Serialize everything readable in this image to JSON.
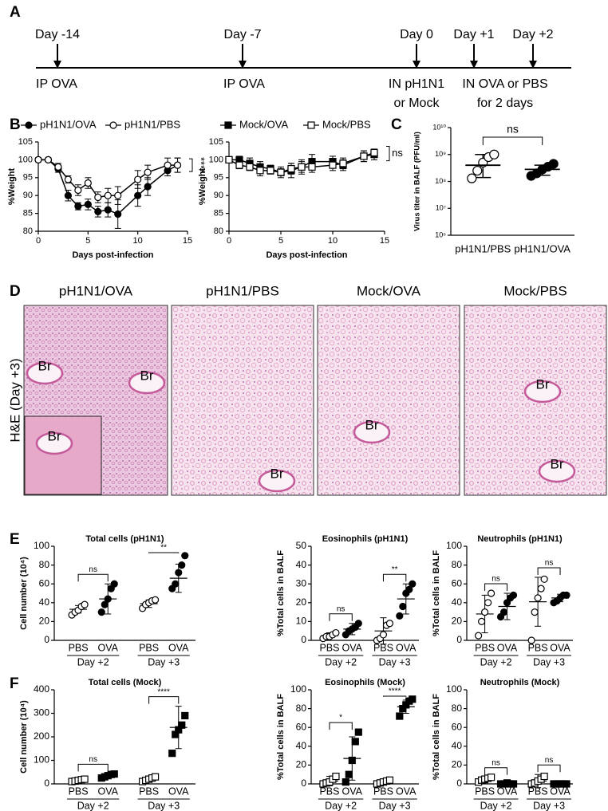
{
  "panel_labels": [
    "A",
    "B",
    "C",
    "D",
    "E",
    "F"
  ],
  "timeline": {
    "days": [
      "Day -14",
      "Day -7",
      "Day 0",
      "Day +1",
      "Day +2"
    ],
    "notes": [
      [
        "IP OVA"
      ],
      [
        "IP OVA"
      ],
      [
        "IN pH1N1",
        "or Mock"
      ],
      [
        "IN OVA or PBS",
        "for 2 days"
      ]
    ]
  },
  "histology": {
    "ylabel": "H&E (Day +3)",
    "panels": [
      {
        "title": "pH1N1/OVA",
        "labels": [
          "Br",
          "Br",
          "Br"
        ]
      },
      {
        "title": "pH1N1/PBS",
        "labels": [
          "Br"
        ]
      },
      {
        "title": "Mock/OVA",
        "labels": [
          "Br"
        ]
      },
      {
        "title": "Mock/PBS",
        "labels": [
          "Br",
          "Br"
        ]
      }
    ]
  },
  "chart_data": [
    {
      "type": "line",
      "xlabel": "Days post-infection",
      "ylabel": "%Weight",
      "x": [
        0,
        1,
        2,
        3,
        4,
        5,
        6,
        7,
        8,
        10,
        11,
        13,
        14
      ],
      "xlim": [
        0,
        15
      ],
      "xticks": [
        0,
        5,
        10,
        15
      ],
      "ylim": [
        80,
        105
      ],
      "yticks": [
        80,
        85,
        90,
        95,
        100,
        105
      ],
      "annotation": "****",
      "series": [
        {
          "name": "pH1N1/OVA",
          "color": "#000000",
          "marker": "circle",
          "values": [
            100,
            100,
            97.5,
            90,
            87,
            87.5,
            85.5,
            86,
            84.8,
            90,
            92.5,
            97,
            98.5
          ],
          "errors": [
            0.5,
            0.5,
            1,
            1.5,
            1,
            1.5,
            1.5,
            2,
            4,
            3,
            2.5,
            1.5,
            2
          ]
        },
        {
          "name": "pH1N1/PBS",
          "color": "#000000",
          "marker": "open-circle",
          "values": [
            100,
            100,
            98,
            94.5,
            91.5,
            93.5,
            89.5,
            90,
            90,
            94.5,
            96.5,
            98.5,
            98.5
          ],
          "errors": [
            0.5,
            0.5,
            1,
            1,
            1.5,
            1.5,
            1.5,
            2,
            2.5,
            2.5,
            2,
            2,
            2
          ]
        }
      ]
    },
    {
      "type": "line",
      "xlabel": "Days post-infection",
      "ylabel": "%Weight",
      "x": [
        0,
        1,
        2,
        3,
        4,
        5,
        6,
        7,
        8,
        10,
        11,
        13,
        14
      ],
      "xlim": [
        0,
        15
      ],
      "xticks": [
        0,
        5,
        10,
        15
      ],
      "ylim": [
        80,
        105
      ],
      "yticks": [
        80,
        85,
        90,
        95,
        100,
        105
      ],
      "annotation": "ns",
      "series": [
        {
          "name": "Mock/OVA",
          "color": "#000000",
          "marker": "square",
          "values": [
            100,
            100,
            99,
            98,
            97.5,
            96.5,
            97,
            98,
            99.5,
            99.5,
            98.5,
            101,
            101.5
          ],
          "errors": [
            0.5,
            1,
            1.5,
            1.5,
            1,
            1.5,
            2,
            2,
            2,
            1.5,
            1.5,
            1.5,
            1.5
          ]
        },
        {
          "name": "Mock/PBS",
          "color": "#000000",
          "marker": "open-square",
          "values": [
            100,
            98.5,
            98,
            97,
            97,
            96.5,
            97.5,
            98,
            98,
            98.5,
            99,
            101,
            102
          ],
          "errors": [
            0.5,
            1,
            1,
            1.5,
            1,
            1,
            1.5,
            1.5,
            1.5,
            1.5,
            1.5,
            1.5,
            1
          ]
        }
      ]
    },
    {
      "type": "logdot",
      "ylabel": "Virus titer in BALF (PFU/ml)",
      "log_scale": true,
      "categories": [
        "pH1N1/PBS",
        "pH1N1/OVA"
      ],
      "markers": [
        "open-circle",
        "circle"
      ],
      "ylim": [
        1000000,
        10000000000
      ],
      "yticks": [
        {
          "value": 1000000,
          "label": "10⁶"
        },
        {
          "value": 10000000,
          "label": "10⁷"
        },
        {
          "value": 100000000,
          "label": "10⁸"
        },
        {
          "value": 1000000000,
          "label": "10⁹"
        },
        {
          "value": 10000000000,
          "label": "10¹⁰"
        }
      ],
      "points": [
        [
          130000000,
          250000000,
          500000000,
          800000000,
          1000000000
        ],
        [
          160000000,
          200000000,
          280000000,
          350000000,
          450000000
        ]
      ],
      "means": [
        400000000,
        280000000
      ],
      "error_bars": [
        [
          140000000,
          1000000000
        ],
        [
          170000000,
          400000000
        ]
      ],
      "annotation": "ns"
    },
    {
      "type": "dot",
      "title": "Total cells (pH1N1)",
      "ylabel": "Cell number (10⁴)",
      "categories": [
        "PBS",
        "OVA",
        "PBS",
        "OVA"
      ],
      "groups": [
        "Day +2",
        "Day +3"
      ],
      "markers": [
        "open-circle",
        "circle",
        "open-circle",
        "circle"
      ],
      "ylim": [
        0,
        100
      ],
      "yticks": [
        0,
        20,
        40,
        60,
        80,
        100
      ],
      "points": [
        [
          27,
          30,
          32,
          36,
          38
        ],
        [
          30,
          38,
          44,
          55,
          60
        ],
        [
          34,
          38,
          40,
          42,
          43
        ],
        [
          55,
          60,
          72,
          80,
          90
        ]
      ],
      "means": [
        33,
        44,
        39,
        66
      ],
      "sd": [
        4,
        16,
        4,
        15
      ],
      "annotations": [
        "ns",
        "**"
      ]
    },
    {
      "type": "dot",
      "title": "Eosinophils (pH1N1)",
      "ylabel": "%Total cells in BALF",
      "categories": [
        "PBS",
        "OVA",
        "PBS",
        "OVA"
      ],
      "groups": [
        "Day +2",
        "Day +3"
      ],
      "markers": [
        "open-circle",
        "circle",
        "open-circle",
        "circle"
      ],
      "ylim": [
        0,
        50
      ],
      "yticks": [
        0,
        10,
        20,
        30,
        40,
        50
      ],
      "points": [
        [
          1,
          2,
          2,
          3,
          4
        ],
        [
          3,
          5,
          6,
          7,
          9
        ],
        [
          0,
          1,
          3,
          8,
          9
        ],
        [
          13,
          18,
          25,
          27,
          30
        ]
      ],
      "means": [
        2.5,
        6,
        5,
        22
      ],
      "sd": [
        1.5,
        3,
        7,
        8
      ],
      "annotations": [
        "ns",
        "**"
      ]
    },
    {
      "type": "dot",
      "title": "Neutrophils (pH1N1)",
      "ylabel": "%Total cells in BALF",
      "categories": [
        "PBS",
        "OVA",
        "PBS",
        "OVA"
      ],
      "groups": [
        "Day +2",
        "Day +3"
      ],
      "markers": [
        "open-circle",
        "circle",
        "open-circle",
        "circle"
      ],
      "ylim": [
        0,
        100
      ],
      "yticks": [
        0,
        20,
        40,
        60,
        80,
        100
      ],
      "points": [
        [
          5,
          20,
          30,
          40,
          50
        ],
        [
          25,
          30,
          40,
          45,
          48
        ],
        [
          0,
          30,
          45,
          55,
          65
        ],
        [
          40,
          42,
          45,
          48,
          48
        ]
      ],
      "means": [
        28,
        36,
        41,
        45
      ],
      "sd": [
        20,
        14,
        26,
        4
      ],
      "annotations": [
        "ns",
        "ns"
      ]
    },
    {
      "type": "dot",
      "title": "Total cells (Mock)",
      "ylabel": "Cell number (10⁴)",
      "categories": [
        "PBS",
        "OVA",
        "PBS",
        "OVA"
      ],
      "groups": [
        "Day +2",
        "Day +3"
      ],
      "markers": [
        "open-square",
        "square",
        "open-square",
        "square"
      ],
      "ylim": [
        0,
        400
      ],
      "yticks": [
        0,
        100,
        200,
        300,
        400
      ],
      "points": [
        [
          10,
          12,
          15,
          18,
          20
        ],
        [
          25,
          30,
          35,
          40,
          42
        ],
        [
          10,
          15,
          20,
          25,
          30
        ],
        [
          130,
          210,
          230,
          250,
          290
        ]
      ],
      "means": [
        15,
        35,
        22,
        240
      ],
      "sd": [
        5,
        8,
        8,
        90
      ],
      "annotations": [
        "ns",
        "****"
      ]
    },
    {
      "type": "dot",
      "title": "Eosinophils (Mock)",
      "ylabel": "%Total cells in BALF",
      "categories": [
        "PBS",
        "OVA",
        "PBS",
        "OVA"
      ],
      "groups": [
        "Day +2",
        "Day +3"
      ],
      "markers": [
        "open-square",
        "square",
        "open-square",
        "square"
      ],
      "ylim": [
        0,
        100
      ],
      "yticks": [
        0,
        20,
        40,
        60,
        80,
        100
      ],
      "points": [
        [
          0,
          1,
          2,
          5,
          8
        ],
        [
          2,
          10,
          25,
          45,
          55
        ],
        [
          0,
          1,
          2,
          3,
          4
        ],
        [
          72,
          80,
          84,
          88,
          90
        ]
      ],
      "means": [
        3,
        27,
        2,
        82
      ],
      "sd": [
        5,
        23,
        2,
        7
      ],
      "annotations": [
        "*",
        "****"
      ]
    },
    {
      "type": "dot",
      "title": "Neutrophils (Mock)",
      "ylabel": "%Total cells in BALF",
      "categories": [
        "PBS",
        "OVA",
        "PBS",
        "OVA"
      ],
      "groups": [
        "Day +2",
        "Day +3"
      ],
      "markers": [
        "open-square",
        "square",
        "open-square",
        "square"
      ],
      "ylim": [
        0,
        100
      ],
      "yticks": [
        0,
        20,
        40,
        60,
        80,
        100
      ],
      "points": [
        [
          2,
          4,
          5,
          6,
          7
        ],
        [
          0,
          0,
          1,
          0,
          0
        ],
        [
          0,
          1,
          3,
          5,
          8
        ],
        [
          0,
          0,
          0,
          0,
          0
        ]
      ],
      "means": [
        4,
        0.2,
        3,
        0
      ],
      "sd": [
        3,
        0.3,
        7,
        0
      ],
      "annotations": [
        "ns",
        "ns"
      ]
    }
  ]
}
